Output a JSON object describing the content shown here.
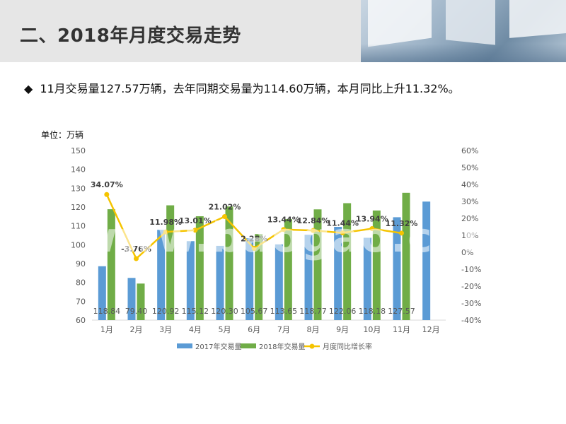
{
  "header": {
    "title": "二、2018年月度交易走势"
  },
  "summary": {
    "bullet": "◆",
    "text": "11月交易量127.57万辆，去年同期交易量为114.60万辆，本月同比上升11.32%。"
  },
  "unit_label": "单位：万辆",
  "watermark": "www.baogao.com",
  "colors": {
    "series_2017": "#5b9bd5",
    "series_2018": "#70ad47",
    "line": "#f5c400",
    "axis_text": "#595959"
  },
  "chart_data": {
    "type": "bar",
    "categories": [
      "1月",
      "2月",
      "3月",
      "4月",
      "5月",
      "6月",
      "7月",
      "8月",
      "9月",
      "10月",
      "11月",
      "12月"
    ],
    "series": [
      {
        "name": "2017年交易量",
        "values": [
          88.6,
          82.4,
          107.9,
          101.9,
          99.4,
          103.4,
          100.2,
          105.3,
          109.5,
          103.7,
          114.6,
          122.9
        ]
      },
      {
        "name": "2018年交易量",
        "values": [
          118.84,
          79.4,
          120.92,
          115.12,
          120.3,
          105.67,
          113.65,
          118.77,
          122.06,
          118.18,
          127.57,
          null
        ]
      },
      {
        "name": "月度同比增长率",
        "type": "line",
        "values": [
          34.07,
          -3.76,
          11.98,
          13.01,
          21.02,
          2.28,
          13.44,
          12.84,
          11.44,
          13.94,
          11.32,
          null
        ]
      }
    ],
    "bar_value_labels": [
      "118.84",
      "79.40",
      "120.92",
      "115.12",
      "120.30",
      "105.67",
      "113.65",
      "118.77",
      "122.06",
      "118.18",
      "127.57"
    ],
    "line_labels": [
      "34.07%",
      "-3.76%",
      "11.98%",
      "13.01%",
      "21.02%",
      "2.28%",
      "13.44%",
      "12.84%",
      "11.44%",
      "13.94%",
      "11.32%"
    ],
    "y_left": {
      "min": 60,
      "max": 150,
      "ticks": [
        "150",
        "140",
        "130",
        "120",
        "110",
        "100",
        "90",
        "80",
        "70",
        "60"
      ]
    },
    "y_right": {
      "min": -40,
      "max": 60,
      "ticks": [
        "60%",
        "50%",
        "40%",
        "30%",
        "20%",
        "10%",
        "0%",
        "-10%",
        "-20%",
        "-30%",
        "-40%"
      ]
    },
    "legend": [
      "2017年交易量",
      "2018年交易量",
      "月度同比增长率"
    ],
    "legend_position": "bottom"
  }
}
